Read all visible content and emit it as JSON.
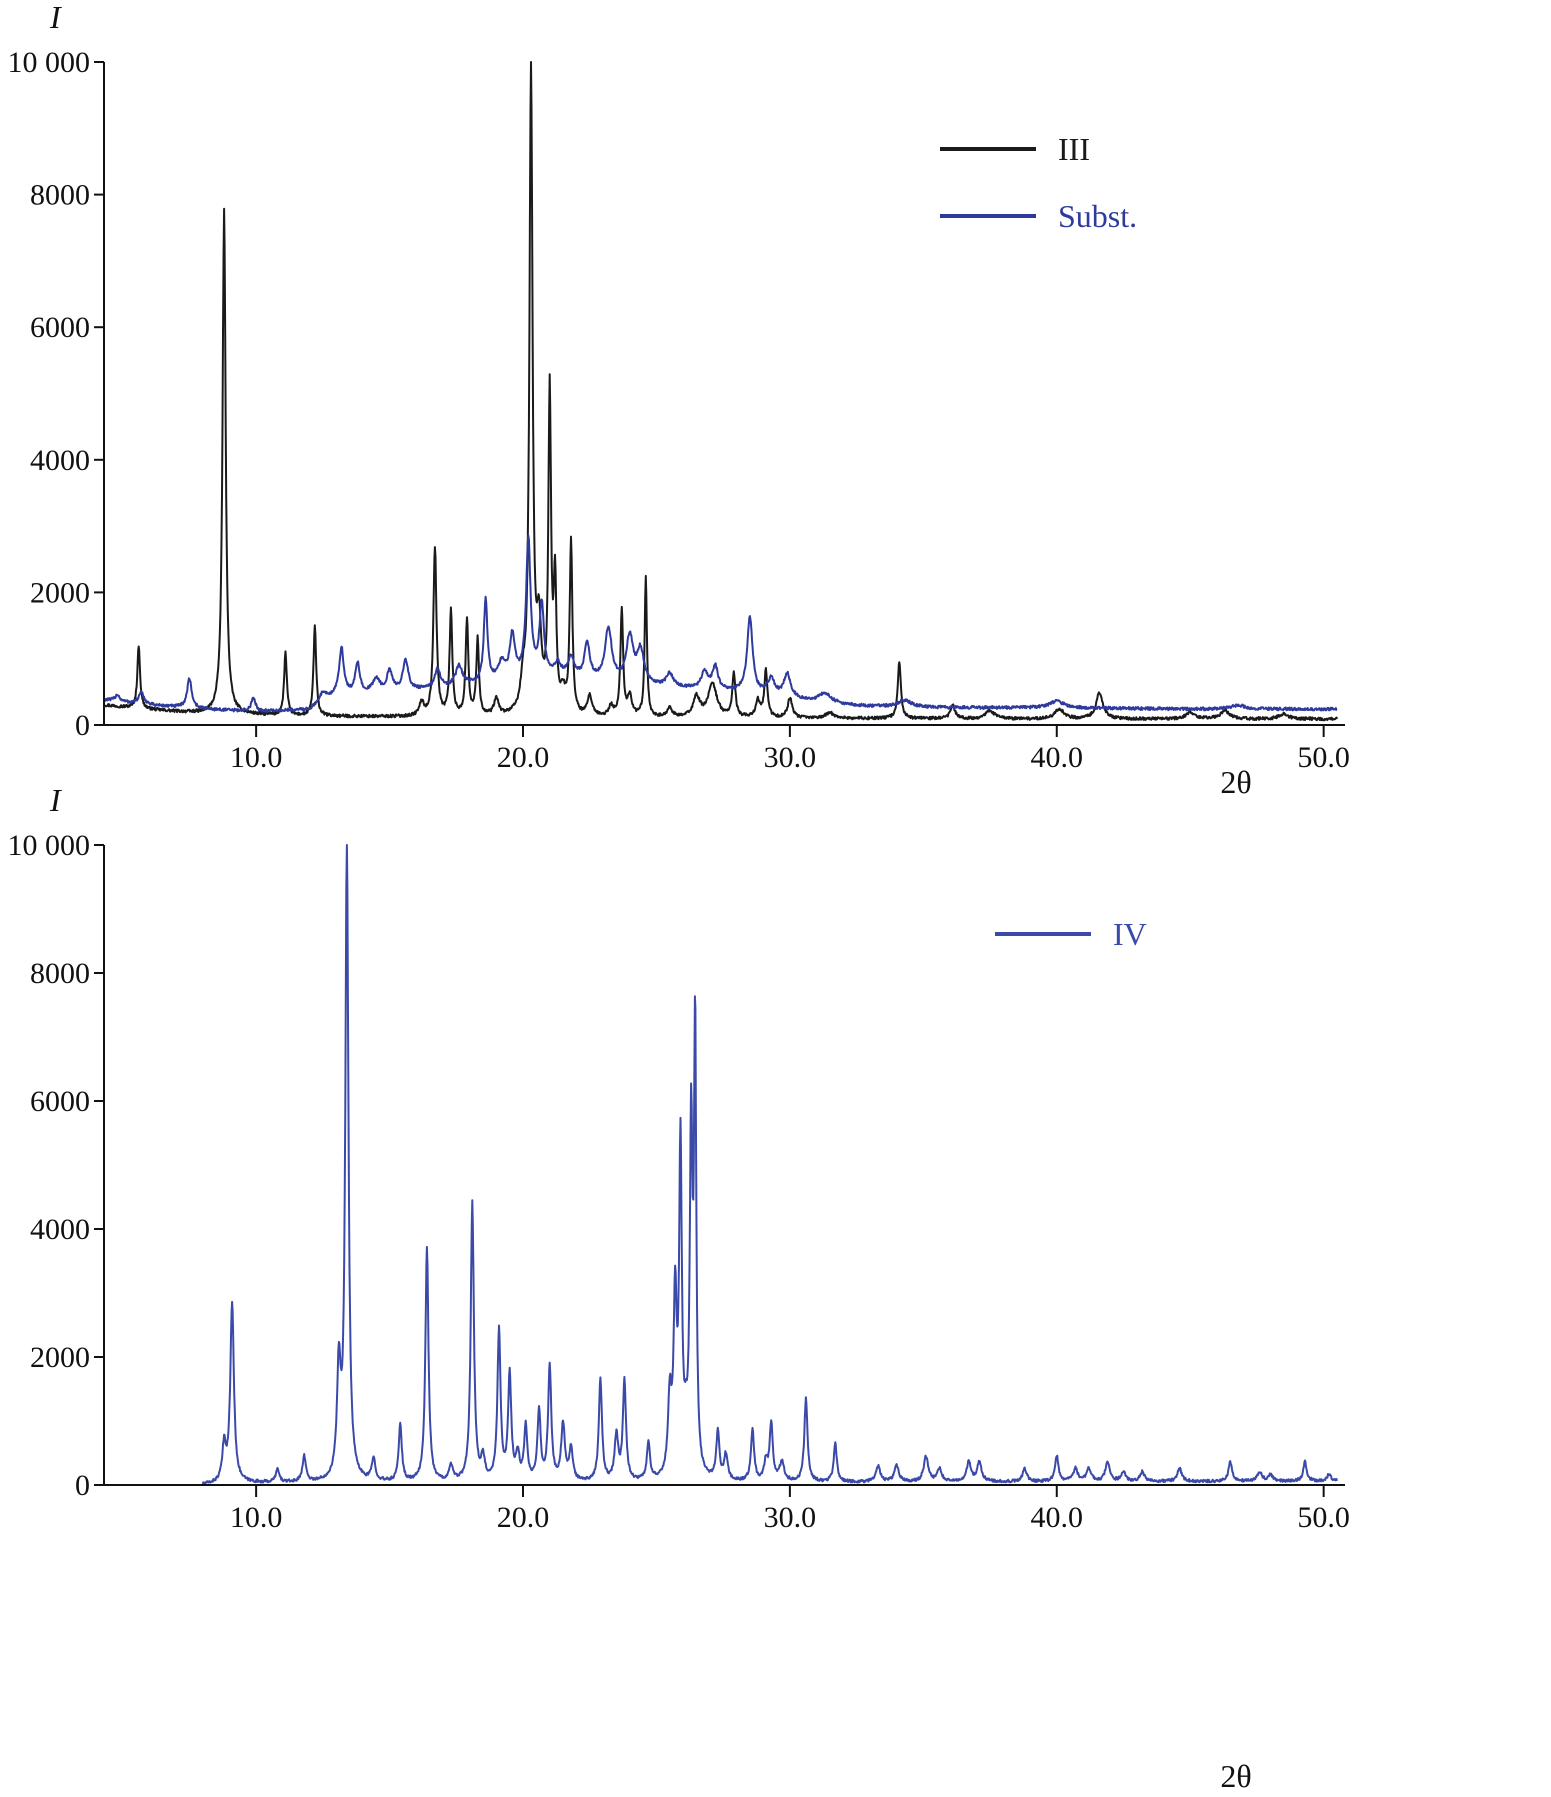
{
  "chart_data": [
    {
      "id": "top",
      "type": "line",
      "ylabel": "I",
      "xlabel": "2θ",
      "xlim": [
        4.3,
        50.5
      ],
      "ylim": [
        0,
        10000
      ],
      "xticks": [
        10.0,
        20.0,
        30.0,
        40.0,
        50.0
      ],
      "xtick_labels": [
        "10.0",
        "20.0",
        "30.0",
        "40.0",
        "50.0"
      ],
      "yticks": [
        0,
        2000,
        4000,
        6000,
        8000,
        10000
      ],
      "ytick_labels": [
        "0",
        "2000",
        "4000",
        "6000",
        "8000",
        "10 000"
      ],
      "grid": false,
      "legend_position": "top-right",
      "series": [
        {
          "name": "III",
          "color": "#1a1a1a",
          "baseline": [
            [
              4.3,
              300
            ],
            [
              6,
              230
            ],
            [
              8,
              170
            ],
            [
              12,
              130
            ],
            [
              20,
              110
            ],
            [
              30,
              100
            ],
            [
              40,
              90
            ],
            [
              50.5,
              90
            ]
          ],
          "peaks": [
            [
              5.6,
              950,
              0.06
            ],
            [
              8.8,
              7600,
              0.07
            ],
            [
              11.1,
              950,
              0.06
            ],
            [
              12.2,
              1350,
              0.06
            ],
            [
              16.2,
              200,
              0.1
            ],
            [
              16.7,
              2550,
              0.07
            ],
            [
              17.3,
              1600,
              0.06
            ],
            [
              17.9,
              1450,
              0.06
            ],
            [
              18.3,
              1150,
              0.06
            ],
            [
              19.0,
              250,
              0.1
            ],
            [
              20.0,
              400,
              0.1
            ],
            [
              20.3,
              9700,
              0.07
            ],
            [
              20.6,
              1200,
              0.1
            ],
            [
              21.0,
              4800,
              0.06
            ],
            [
              21.2,
              1900,
              0.06
            ],
            [
              21.5,
              300,
              0.1
            ],
            [
              21.8,
              2600,
              0.06
            ],
            [
              22.5,
              300,
              0.1
            ],
            [
              23.3,
              150,
              0.1
            ],
            [
              23.7,
              1600,
              0.06
            ],
            [
              24.0,
              300,
              0.1
            ],
            [
              24.6,
              2100,
              0.05
            ],
            [
              25.5,
              150,
              0.1
            ],
            [
              26.5,
              300,
              0.15
            ],
            [
              27.1,
              500,
              0.2
            ],
            [
              27.9,
              650,
              0.07
            ],
            [
              28.8,
              250,
              0.1
            ],
            [
              29.1,
              700,
              0.07
            ],
            [
              30.0,
              300,
              0.1
            ],
            [
              31.5,
              80,
              0.2
            ],
            [
              34.1,
              850,
              0.07
            ],
            [
              36.1,
              200,
              0.1
            ],
            [
              37.5,
              120,
              0.2
            ],
            [
              40.1,
              150,
              0.2
            ],
            [
              41.6,
              400,
              0.15
            ],
            [
              45.0,
              100,
              0.2
            ],
            [
              46.3,
              120,
              0.2
            ],
            [
              48.5,
              80,
              0.2
            ]
          ]
        },
        {
          "name": "Subst.",
          "color": "#2e3a9c",
          "baseline": [
            [
              4.3,
              380
            ],
            [
              6,
              300
            ],
            [
              8,
              240
            ],
            [
              10,
              200
            ],
            [
              12,
              230
            ],
            [
              13,
              450
            ],
            [
              15,
              500
            ],
            [
              17,
              550
            ],
            [
              19,
              650
            ],
            [
              21,
              700
            ],
            [
              23,
              650
            ],
            [
              26,
              550
            ],
            [
              28,
              500
            ],
            [
              30,
              400
            ],
            [
              31,
              330
            ],
            [
              33,
              280
            ],
            [
              36,
              260
            ],
            [
              40,
              260
            ],
            [
              45,
              240
            ],
            [
              50.5,
              240
            ]
          ],
          "peaks": [
            [
              4.8,
              100,
              0.1
            ],
            [
              5.7,
              170,
              0.12
            ],
            [
              7.5,
              450,
              0.1
            ],
            [
              9.9,
              200,
              0.1
            ],
            [
              12.5,
              150,
              0.15
            ],
            [
              13.2,
              700,
              0.1
            ],
            [
              13.8,
              450,
              0.1
            ],
            [
              14.5,
              200,
              0.15
            ],
            [
              15.0,
              300,
              0.12
            ],
            [
              15.6,
              450,
              0.12
            ],
            [
              16.8,
              300,
              0.12
            ],
            [
              17.6,
              300,
              0.15
            ],
            [
              18.6,
              1250,
              0.08
            ],
            [
              19.2,
              250,
              0.15
            ],
            [
              19.6,
              650,
              0.12
            ],
            [
              20.2,
              2100,
              0.1
            ],
            [
              20.7,
              1100,
              0.1
            ],
            [
              21.3,
              200,
              0.15
            ],
            [
              21.8,
              300,
              0.15
            ],
            [
              22.4,
              550,
              0.12
            ],
            [
              23.2,
              800,
              0.15
            ],
            [
              24.0,
              700,
              0.15
            ],
            [
              24.4,
              500,
              0.15
            ],
            [
              25.5,
              200,
              0.15
            ],
            [
              26.8,
              250,
              0.15
            ],
            [
              27.2,
              350,
              0.12
            ],
            [
              28.5,
              1150,
              0.12
            ],
            [
              29.3,
              250,
              0.15
            ],
            [
              29.9,
              350,
              0.15
            ],
            [
              31.3,
              150,
              0.3
            ],
            [
              34.3,
              100,
              0.3
            ],
            [
              40.0,
              100,
              0.3
            ],
            [
              46.8,
              60,
              0.3
            ]
          ]
        }
      ]
    },
    {
      "id": "bottom",
      "type": "line",
      "ylabel": "I",
      "xlabel": "2θ",
      "xlim": [
        4.3,
        50.5
      ],
      "ylim": [
        0,
        10000
      ],
      "xticks": [
        10.0,
        20.0,
        30.0,
        40.0,
        50.0
      ],
      "xtick_labels": [
        "10.0",
        "20.0",
        "30.0",
        "40.0",
        "50.0"
      ],
      "yticks": [
        0,
        2000,
        4000,
        6000,
        8000,
        10000
      ],
      "ytick_labels": [
        "0",
        "2000",
        "4000",
        "6000",
        "8000",
        "10 000"
      ],
      "grid": false,
      "legend_position": "top-right",
      "series": [
        {
          "name": "IV",
          "color": "#3b4aa8",
          "start_x": 8.0,
          "baseline": [
            [
              8.0,
              0
            ],
            [
              9.0,
              30
            ],
            [
              20,
              30
            ],
            [
              30,
              40
            ],
            [
              40,
              50
            ],
            [
              50.5,
              60
            ]
          ],
          "peaks": [
            [
              8.8,
              550,
              0.08
            ],
            [
              9.1,
              2800,
              0.08
            ],
            [
              10.8,
              200,
              0.08
            ],
            [
              11.8,
              400,
              0.08
            ],
            [
              13.1,
              1700,
              0.08
            ],
            [
              13.4,
              9900,
              0.07
            ],
            [
              14.4,
              350,
              0.08
            ],
            [
              15.4,
              900,
              0.07
            ],
            [
              16.4,
              3650,
              0.07
            ],
            [
              17.3,
              250,
              0.08
            ],
            [
              18.1,
              4350,
              0.07
            ],
            [
              18.5,
              350,
              0.08
            ],
            [
              19.1,
              2350,
              0.07
            ],
            [
              19.5,
              1650,
              0.07
            ],
            [
              19.8,
              400,
              0.08
            ],
            [
              20.1,
              850,
              0.07
            ],
            [
              20.6,
              1100,
              0.07
            ],
            [
              21.0,
              1800,
              0.07
            ],
            [
              21.5,
              900,
              0.08
            ],
            [
              21.8,
              500,
              0.08
            ],
            [
              22.9,
              1600,
              0.07
            ],
            [
              23.5,
              700,
              0.08
            ],
            [
              23.8,
              1550,
              0.07
            ],
            [
              24.7,
              600,
              0.07
            ],
            [
              25.5,
              1200,
              0.08
            ],
            [
              25.7,
              2700,
              0.07
            ],
            [
              25.9,
              5100,
              0.06
            ],
            [
              26.1,
              500,
              0.08
            ],
            [
              26.3,
              5300,
              0.06
            ],
            [
              26.45,
              6900,
              0.05
            ],
            [
              27.3,
              750,
              0.07
            ],
            [
              27.6,
              400,
              0.08
            ],
            [
              28.6,
              800,
              0.07
            ],
            [
              29.1,
              300,
              0.08
            ],
            [
              29.3,
              900,
              0.07
            ],
            [
              29.7,
              300,
              0.1
            ],
            [
              30.6,
              1300,
              0.07
            ],
            [
              31.7,
              600,
              0.07
            ],
            [
              33.3,
              250,
              0.1
            ],
            [
              34.0,
              250,
              0.1
            ],
            [
              35.1,
              400,
              0.1
            ],
            [
              35.6,
              200,
              0.1
            ],
            [
              36.7,
              300,
              0.1
            ],
            [
              37.1,
              300,
              0.1
            ],
            [
              38.8,
              200,
              0.1
            ],
            [
              40.0,
              400,
              0.08
            ],
            [
              40.7,
              200,
              0.1
            ],
            [
              41.2,
              200,
              0.1
            ],
            [
              41.9,
              300,
              0.1
            ],
            [
              42.5,
              150,
              0.1
            ],
            [
              43.2,
              150,
              0.1
            ],
            [
              44.6,
              200,
              0.1
            ],
            [
              46.5,
              300,
              0.08
            ],
            [
              47.6,
              150,
              0.1
            ],
            [
              48.0,
              100,
              0.1
            ],
            [
              49.3,
              300,
              0.08
            ],
            [
              50.2,
              100,
              0.1
            ]
          ]
        }
      ]
    }
  ]
}
